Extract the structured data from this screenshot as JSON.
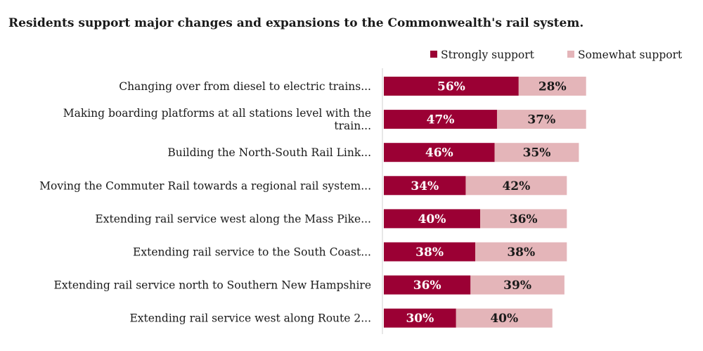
{
  "chart_data": {
    "type": "bar",
    "orientation": "horizontal",
    "stacked": true,
    "title": "Residents support major changes and expansions to the Commonwealth's rail system.",
    "categories": [
      [
        "Changing over from diesel to electric trains..."
      ],
      [
        "Making boarding platforms at all stations level with the",
        "train..."
      ],
      [
        "Building the North-South Rail Link..."
      ],
      [
        "Moving the Commuter Rail towards a regional rail system..."
      ],
      [
        "Extending rail service west along the Mass Pike..."
      ],
      [
        "Extending rail service to the South Coast..."
      ],
      [
        "Extending rail service north to Southern New Hampshire"
      ],
      [
        "Extending rail service west along Route 2..."
      ]
    ],
    "series": [
      {
        "name": "Strongly support",
        "color": "#9b0034",
        "label_color": "#ffffff",
        "values": [
          56,
          47,
          46,
          34,
          40,
          38,
          36,
          30
        ]
      },
      {
        "name": "Somewhat support",
        "color": "#e4b5b9",
        "label_color": "#1a1a1a",
        "values": [
          28,
          37,
          35,
          42,
          36,
          38,
          39,
          40
        ]
      }
    ],
    "value_suffix": "%",
    "xlim": [
      0,
      100
    ],
    "grid": false,
    "legend_position": "top-right"
  }
}
